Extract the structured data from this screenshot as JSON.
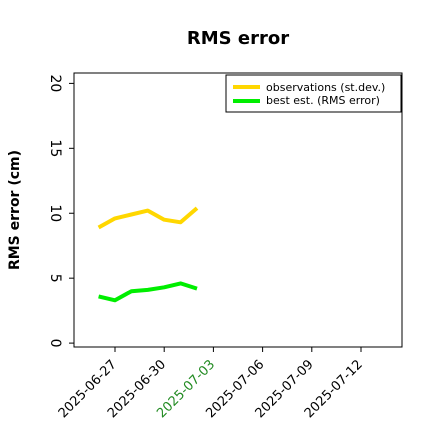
{
  "chart_data": {
    "type": "line",
    "title": "RMS error",
    "xlabel": "",
    "ylabel": "RMS error (cm)",
    "ylim": [
      -0.3,
      20.8
    ],
    "xlim": [
      "2025-06-24T12:00",
      "2025-07-14T12:00"
    ],
    "yticks": [
      "0",
      "5",
      "10",
      "15",
      "20"
    ],
    "xticks": [
      {
        "label": "2025-06-27",
        "color": "#000000"
      },
      {
        "label": "2025-06-30",
        "color": "#000000"
      },
      {
        "label": "2025-07-03",
        "color": "#228B22"
      },
      {
        "label": "2025-07-06",
        "color": "#000000"
      },
      {
        "label": "2025-07-09",
        "color": "#000000"
      },
      {
        "label": "2025-07-12",
        "color": "#000000"
      }
    ],
    "x": [
      "2025-06-26",
      "2025-06-27",
      "2025-06-28",
      "2025-06-29",
      "2025-06-30",
      "2025-07-01",
      "2025-07-02"
    ],
    "series": [
      {
        "name": "observations (st.dev.)",
        "color": "#FFD700",
        "values": [
          8.9,
          9.6,
          9.9,
          10.2,
          9.5,
          9.3,
          10.4
        ]
      },
      {
        "name": "best est. (RMS error)",
        "color": "#00EE00",
        "values": [
          3.6,
          3.3,
          4.0,
          4.1,
          4.3,
          4.6,
          4.2
        ]
      }
    ],
    "grid": false,
    "legend_position": "top-right"
  }
}
